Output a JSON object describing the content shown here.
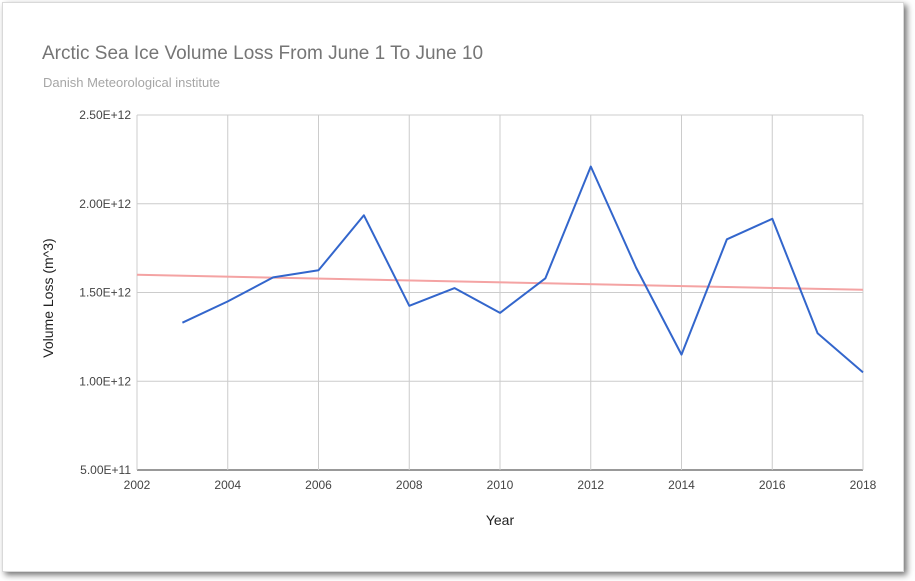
{
  "chart_data": {
    "type": "line",
    "title": "Arctic Sea Ice Volume Loss From June 1 To June 10",
    "subtitle": "Danish Meteorological institute",
    "xlabel": "Year",
    "ylabel": "Volume Loss (m^3)",
    "xlim": [
      2002,
      2018
    ],
    "ylim": [
      500000000000,
      2500000000000
    ],
    "x_ticks": [
      2002,
      2004,
      2006,
      2008,
      2010,
      2012,
      2014,
      2016,
      2018
    ],
    "x_tick_labels": [
      "2002",
      "2004",
      "2006",
      "2008",
      "2010",
      "2012",
      "2014",
      "2016",
      "2018"
    ],
    "y_ticks": [
      500000000000,
      1000000000000,
      1500000000000,
      2000000000000,
      2500000000000
    ],
    "y_tick_labels": [
      "5.00E+11",
      "1.00E+12",
      "1.50E+12",
      "2.00E+12",
      "2.50E+12"
    ],
    "grid": true,
    "series": [
      {
        "color": "#3366cc",
        "x": [
          2003,
          2004,
          2005,
          2006,
          2007,
          2008,
          2009,
          2010,
          2011,
          2012,
          2013,
          2014,
          2015,
          2016,
          2017,
          2018
        ],
        "y": [
          1330000000000,
          1450000000000,
          1585000000000,
          1625000000000,
          1935000000000,
          1425000000000,
          1525000000000,
          1385000000000,
          1580000000000,
          2210000000000,
          1640000000000,
          1150000000000,
          1800000000000,
          1915000000000,
          1270000000000,
          1050000000000
        ]
      },
      {
        "color": "#f4a3a3",
        "x": [
          2002,
          2018
        ],
        "y": [
          1600000000000,
          1515000000000
        ]
      }
    ]
  }
}
